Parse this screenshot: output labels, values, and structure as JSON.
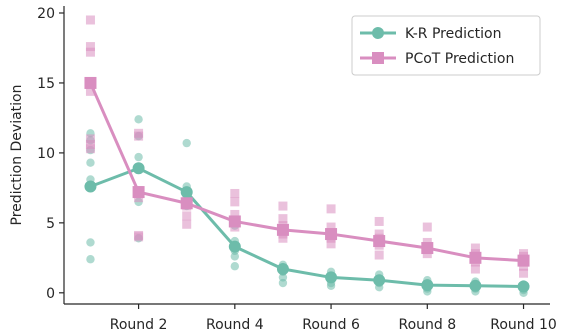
{
  "chart_data": {
    "type": "line",
    "title": "",
    "xlabel": "",
    "ylabel": "Prediction Deviation",
    "x": [
      1,
      2,
      3,
      4,
      5,
      6,
      7,
      8,
      9,
      10
    ],
    "x_tick_values": [
      2,
      4,
      6,
      8,
      10
    ],
    "x_tick_labels": [
      "Round 2",
      "Round 4",
      "Round 6",
      "Round 8",
      "Round 10"
    ],
    "xlim": [
      0.45,
      10.55
    ],
    "ylim": [
      -0.8,
      20.5
    ],
    "y_ticks": [
      0,
      5,
      10,
      15,
      20
    ],
    "grid": false,
    "legend_position": "top-right",
    "series": [
      {
        "name": "K-R Prediction",
        "color": "#6dbcaa",
        "marker": "circle",
        "values": [
          7.6,
          8.9,
          7.2,
          3.3,
          1.7,
          1.1,
          0.9,
          0.55,
          0.5,
          0.45
        ],
        "scatter": [
          [
            11.4,
            10.9,
            10.2,
            9.3,
            8.1,
            7.5,
            3.6,
            2.4
          ],
          [
            12.4,
            11.2,
            9.7,
            8.9,
            7.3,
            6.5,
            3.9
          ],
          [
            10.7,
            7.6,
            7.0,
            6.6,
            6.2
          ],
          [
            4.8,
            3.7,
            3.0,
            2.6,
            1.9
          ],
          [
            2.0,
            1.5,
            1.1,
            0.7
          ],
          [
            1.5,
            1.0,
            0.7,
            0.5
          ],
          [
            1.3,
            1.0,
            0.7,
            0.4
          ],
          [
            0.9,
            0.6,
            0.3,
            0.1
          ],
          [
            0.8,
            0.5,
            0.3,
            0.1
          ],
          [
            0.6,
            0.4,
            0.2,
            0.0
          ]
        ]
      },
      {
        "name": "PCoT Prediction",
        "color": "#d98ec0",
        "marker": "square",
        "values": [
          15.0,
          7.2,
          6.4,
          5.1,
          4.5,
          4.2,
          3.7,
          3.2,
          2.5,
          2.3
        ],
        "scatter": [
          [
            19.5,
            17.6,
            17.2,
            15.0,
            14.4,
            11.0,
            10.6,
            10.3
          ],
          [
            11.4,
            11.2,
            7.3,
            6.8,
            4.1,
            4.0
          ],
          [
            6.8,
            6.2,
            5.5,
            4.9
          ],
          [
            7.1,
            6.5,
            5.6,
            5.2,
            4.7
          ],
          [
            6.2,
            5.3,
            4.8,
            4.2,
            3.9
          ],
          [
            6.0,
            4.7,
            4.3,
            3.9,
            3.5
          ],
          [
            5.1,
            4.2,
            3.9,
            3.4,
            2.7
          ],
          [
            4.7,
            3.6,
            3.3,
            2.8
          ],
          [
            3.2,
            2.8,
            2.5,
            2.2,
            1.7
          ],
          [
            2.8,
            2.6,
            2.3,
            1.9,
            1.4
          ]
        ]
      }
    ]
  }
}
